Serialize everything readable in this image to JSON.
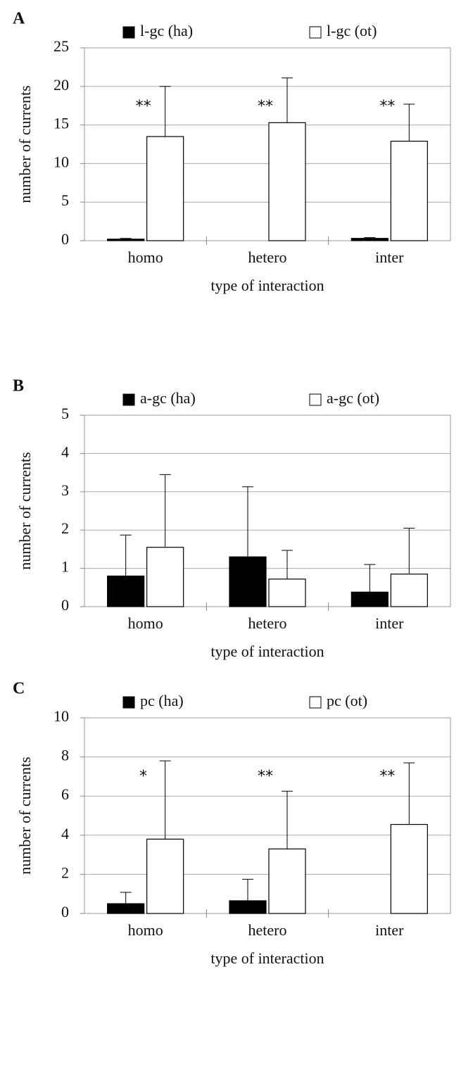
{
  "chart_data": [
    {
      "type": "bar",
      "panel": "A",
      "x_label": "type of interaction",
      "y_label": "number of currents",
      "categories": [
        "homo",
        "hetero",
        "inter"
      ],
      "series": [
        {
          "name": "l-gc (ha)",
          "color": "#000000",
          "values": [
            0.2,
            0,
            0.3
          ],
          "errors": [
            0.1,
            0,
            0.1
          ]
        },
        {
          "name": "l-gc (ot)",
          "color": "#ffffff",
          "values": [
            13.5,
            15.3,
            12.9
          ],
          "errors": [
            6.5,
            5.8,
            4.8
          ]
        }
      ],
      "annotations": [
        "**",
        "**",
        "**"
      ],
      "ylim": [
        0,
        25
      ],
      "yticks": [
        0,
        5,
        10,
        15,
        20,
        25
      ],
      "grid": true
    },
    {
      "type": "bar",
      "panel": "B",
      "x_label": "type of interaction",
      "y_label": "number of currents",
      "categories": [
        "homo",
        "hetero",
        "inter"
      ],
      "series": [
        {
          "name": "a-gc (ha)",
          "color": "#000000",
          "values": [
            0.8,
            1.3,
            0.38
          ],
          "errors": [
            1.07,
            1.83,
            0.72
          ]
        },
        {
          "name": "a-gc (ot)",
          "color": "#ffffff",
          "values": [
            1.55,
            0.72,
            0.85
          ],
          "errors": [
            1.9,
            0.75,
            1.2
          ]
        }
      ],
      "ylim": [
        0,
        5
      ],
      "yticks": [
        0,
        1,
        2,
        3,
        4,
        5
      ],
      "grid": true
    },
    {
      "type": "bar",
      "panel": "C",
      "x_label": "type of interaction",
      "y_label": "number of currents",
      "categories": [
        "homo",
        "hetero",
        "inter"
      ],
      "series": [
        {
          "name": "pc (ha)",
          "color": "#000000",
          "values": [
            0.5,
            0.65,
            0
          ],
          "errors": [
            0.58,
            1.1,
            0
          ]
        },
        {
          "name": "pc (ot)",
          "color": "#ffffff",
          "values": [
            3.8,
            3.3,
            4.55
          ],
          "errors": [
            4.0,
            2.95,
            3.15
          ]
        }
      ],
      "annotations": [
        "*",
        "**",
        "**"
      ],
      "ylim": [
        0,
        10
      ],
      "yticks": [
        0,
        2,
        4,
        6,
        8,
        10
      ],
      "grid": true
    }
  ]
}
